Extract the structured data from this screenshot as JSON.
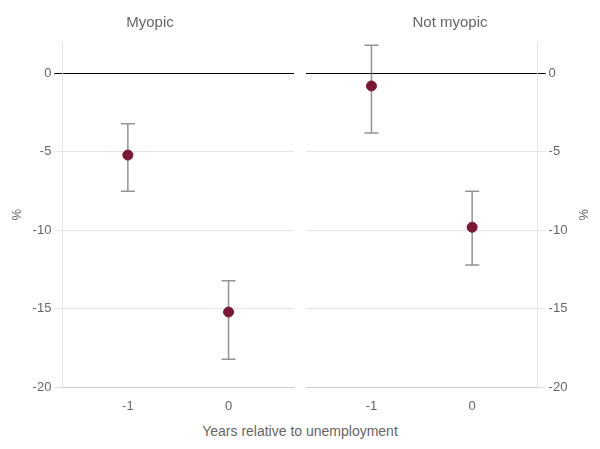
{
  "chart_data": [
    {
      "type": "scatter",
      "title": "Myopic",
      "ylabel": "%",
      "x": [
        -1,
        0
      ],
      "values": [
        -5.2,
        -15.2
      ],
      "ci_low": [
        -7.5,
        -18.2
      ],
      "ci_high": [
        -3.2,
        -13.2
      ],
      "color": "#7b1734",
      "xlim": [
        -1.65,
        0.65
      ],
      "xticks": [
        -1,
        0
      ],
      "ylim": [
        -20,
        2
      ],
      "yticks": [
        0,
        -5,
        -10,
        -15,
        -20
      ],
      "grid": true
    },
    {
      "type": "scatter",
      "title": "Not myopic",
      "ylabel": "%",
      "x": [
        -1,
        0
      ],
      "values": [
        -0.8,
        -9.8
      ],
      "ci_low": [
        -3.8,
        -12.2
      ],
      "ci_high": [
        1.8,
        -7.5
      ],
      "color": "#7b1734",
      "xlim": [
        -1.65,
        0.65
      ],
      "xticks": [
        -1,
        0
      ],
      "ylim": [
        -20,
        2
      ],
      "yticks": [
        0,
        -5,
        -10,
        -15,
        -20
      ],
      "grid": true
    }
  ],
  "xlabel": "Years relative to unemployment"
}
